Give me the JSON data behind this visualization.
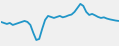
{
  "x": [
    0,
    1,
    2,
    3,
    4,
    5,
    6,
    7,
    8,
    9,
    10,
    11,
    12,
    13,
    14,
    15,
    16,
    17,
    18,
    19,
    20,
    21,
    22,
    23,
    24,
    25,
    26,
    27,
    28,
    29,
    30,
    31,
    32,
    33,
    34,
    35,
    36,
    37,
    38,
    39,
    40
  ],
  "y": [
    0.05,
    0.0,
    -0.05,
    0.0,
    -0.1,
    -0.05,
    0.0,
    0.05,
    0.1,
    0.05,
    -0.1,
    -0.5,
    -0.85,
    -0.8,
    -0.3,
    0.15,
    0.35,
    0.3,
    0.25,
    0.3,
    0.35,
    0.28,
    0.32,
    0.38,
    0.42,
    0.55,
    0.75,
    0.95,
    0.85,
    0.55,
    0.4,
    0.45,
    0.38,
    0.3,
    0.25,
    0.28,
    0.22,
    0.18,
    0.15,
    0.12,
    0.1
  ],
  "line_color": "#2196c8",
  "line_width": 1.3,
  "background_color": "#f0f0f0",
  "ylim": [
    -1.1,
    1.1
  ]
}
